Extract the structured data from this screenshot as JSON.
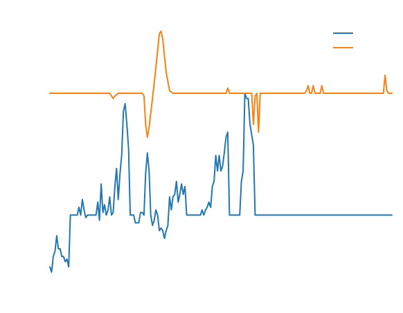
{
  "chart_data": {
    "type": "line",
    "title": "",
    "xlabel": "",
    "ylabel": "",
    "grid": false,
    "legend": "top-right",
    "xlim": [
      0,
      200
    ],
    "ylim": [
      0,
      100
    ],
    "series": [
      {
        "color": "#1f77b4",
        "x": [
          0,
          1,
          2,
          3,
          4,
          5,
          6,
          7,
          8,
          9,
          10,
          11,
          12,
          13,
          14,
          15,
          16,
          17,
          18,
          19,
          20,
          21,
          22,
          23,
          24,
          25,
          26,
          27,
          28,
          29,
          30,
          31,
          32,
          33,
          34,
          35,
          36,
          37,
          38,
          39,
          40,
          41,
          42,
          43,
          44,
          45,
          46,
          47,
          48,
          49,
          50,
          51,
          52,
          53,
          54,
          55,
          56,
          57,
          58,
          59,
          60,
          61,
          62,
          63,
          64,
          65,
          66,
          67,
          68,
          69,
          70,
          71,
          72,
          73,
          74,
          75,
          76,
          77,
          78,
          79,
          80,
          81,
          82,
          83,
          84,
          85,
          86,
          87,
          88,
          89,
          90,
          91,
          92,
          93,
          94,
          95,
          96,
          97,
          98,
          99,
          100,
          101,
          102,
          103,
          104,
          105,
          106,
          107,
          108,
          109,
          110,
          111,
          112,
          113,
          114,
          115,
          116,
          117,
          118,
          119,
          120,
          121,
          122,
          123,
          124,
          125,
          126,
          127,
          128,
          129,
          130,
          131,
          132,
          133,
          134,
          135,
          136,
          137,
          138,
          139,
          140,
          141,
          142,
          143,
          144,
          145,
          146,
          147,
          148,
          149,
          150,
          151,
          152,
          153,
          154,
          155,
          156,
          157,
          158,
          159,
          160,
          161,
          162,
          163,
          164,
          165,
          166,
          167,
          168,
          169,
          170,
          171,
          172,
          173,
          174,
          175,
          176,
          177,
          178,
          179,
          180,
          181,
          182,
          183,
          184,
          185,
          186,
          187,
          188,
          189,
          190,
          191,
          192,
          193,
          194,
          195,
          196,
          197,
          198,
          199,
          200
        ],
        "y": [
          5,
          3,
          9,
          11,
          17,
          12,
          12,
          9,
          9,
          7,
          8,
          5,
          25,
          25,
          25,
          25,
          25,
          28,
          25,
          31,
          27,
          24,
          25,
          25,
          25,
          25,
          25,
          25,
          30,
          23,
          37,
          26,
          29,
          25,
          27,
          32,
          25,
          26,
          36,
          43,
          31,
          41,
          48,
          65,
          68,
          60,
          51,
          25,
          25,
          25,
          22,
          22,
          22,
          26,
          26,
          25,
          41,
          49,
          42,
          25,
          21,
          23,
          27,
          25,
          19,
          20,
          19,
          16,
          19,
          21,
          32,
          27,
          32,
          33,
          38,
          30,
          33,
          37,
          33,
          36,
          25,
          25,
          25,
          25,
          25,
          25,
          25,
          25,
          25,
          27,
          25,
          27,
          28,
          30,
          28,
          36,
          38,
          48,
          42,
          48,
          42,
          44,
          49,
          55,
          57,
          25,
          25,
          25,
          25,
          25,
          25,
          25,
          38,
          42,
          72,
          70,
          70,
          60,
          56,
          52,
          25,
          25,
          25,
          25,
          25,
          25,
          25,
          25,
          25,
          25,
          25,
          25,
          25,
          25,
          25,
          25,
          25,
          25,
          25,
          25,
          25,
          25,
          25,
          25,
          25,
          25,
          25,
          25,
          25,
          25,
          25,
          25,
          25,
          25,
          25,
          25,
          25,
          25,
          25,
          25,
          25,
          25,
          25,
          25,
          25,
          25,
          25,
          25,
          25,
          25,
          25,
          25,
          25,
          25,
          25,
          25,
          25,
          25,
          25,
          25,
          25,
          25,
          25,
          25,
          25,
          25,
          25,
          25,
          25,
          25,
          25,
          25,
          25,
          25,
          25,
          25,
          25,
          25,
          25,
          25,
          25
        ]
      },
      {
        "color": "#ff7f0e",
        "x": [
          0,
          10,
          20,
          30,
          35,
          37,
          38,
          40,
          42,
          45,
          50,
          54,
          55,
          56,
          57,
          58,
          60,
          62,
          64,
          65,
          66,
          68,
          70,
          72,
          75,
          80,
          85,
          90,
          95,
          100,
          103,
          104,
          105,
          110,
          115,
          118,
          119,
          120,
          121,
          122,
          123,
          125,
          130,
          135,
          140,
          145,
          149,
          150,
          151,
          152,
          153,
          154,
          155,
          156,
          157,
          158,
          159,
          160,
          163,
          165,
          170,
          180,
          190,
          195,
          196,
          197,
          198,
          200
        ],
        "y": [
          72,
          72,
          72,
          72,
          72,
          70,
          71,
          72,
          72,
          72,
          72,
          72,
          71,
          60,
          55,
          59,
          70,
          82,
          95,
          96,
          93,
          80,
          73,
          72,
          72,
          72,
          72,
          72,
          72,
          72,
          72,
          74,
          72,
          72,
          72,
          72,
          60,
          71,
          72,
          57,
          72,
          72,
          72,
          72,
          72,
          72,
          72,
          73,
          75,
          72,
          72,
          75,
          72,
          72,
          72,
          72,
          75,
          72,
          72,
          72,
          72,
          72,
          72,
          72,
          79,
          73,
          72,
          72
        ]
      }
    ]
  }
}
